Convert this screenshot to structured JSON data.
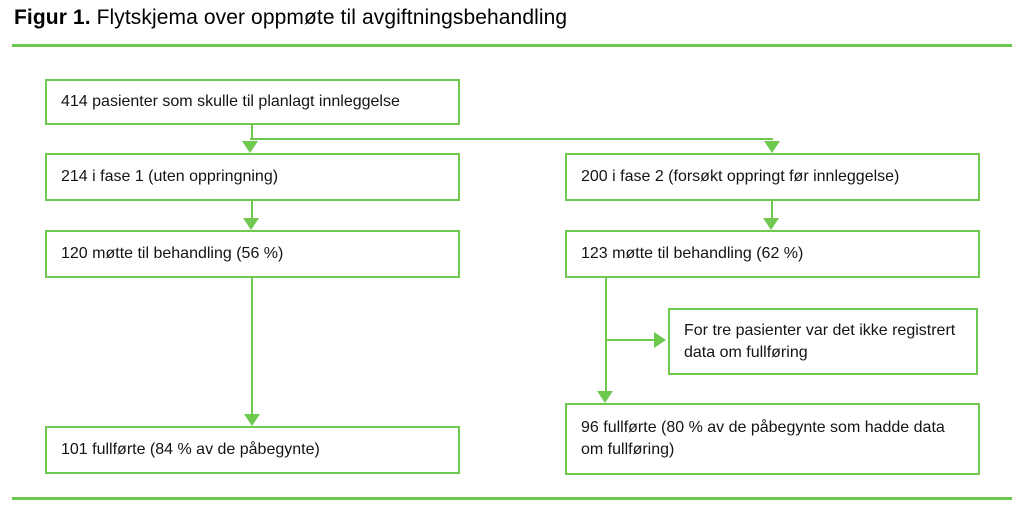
{
  "colors": {
    "accent_green": "#6fc94f",
    "text": "#141414",
    "background": "#ffffff"
  },
  "figure": {
    "title_prefix": "Figur 1.",
    "title_text": " Flytskjema over oppmøte til avgiftningsbehandling"
  },
  "nodes": {
    "total": {
      "text": "414 pasienter som skulle til planlagt innleggelse"
    },
    "phase1": {
      "text": "214 i fase 1 (uten oppringning)"
    },
    "phase2": {
      "text": "200 i fase 2 (forsøkt oppringt før innleggelse)"
    },
    "phase1_attended": {
      "text": "120 møtte til behandling (56 %)"
    },
    "phase2_attended": {
      "text": "123 møtte til behandling (62 %)"
    },
    "missing_data": {
      "text": "For tre pasienter var det ikke registrert data om fullføring"
    },
    "phase2_completed": {
      "text": "96 fullførte (80 % av de påbegynte som hadde data om fullføring)"
    },
    "phase1_completed": {
      "text": "101 fullførte (84 % av de påbegynte)"
    }
  }
}
